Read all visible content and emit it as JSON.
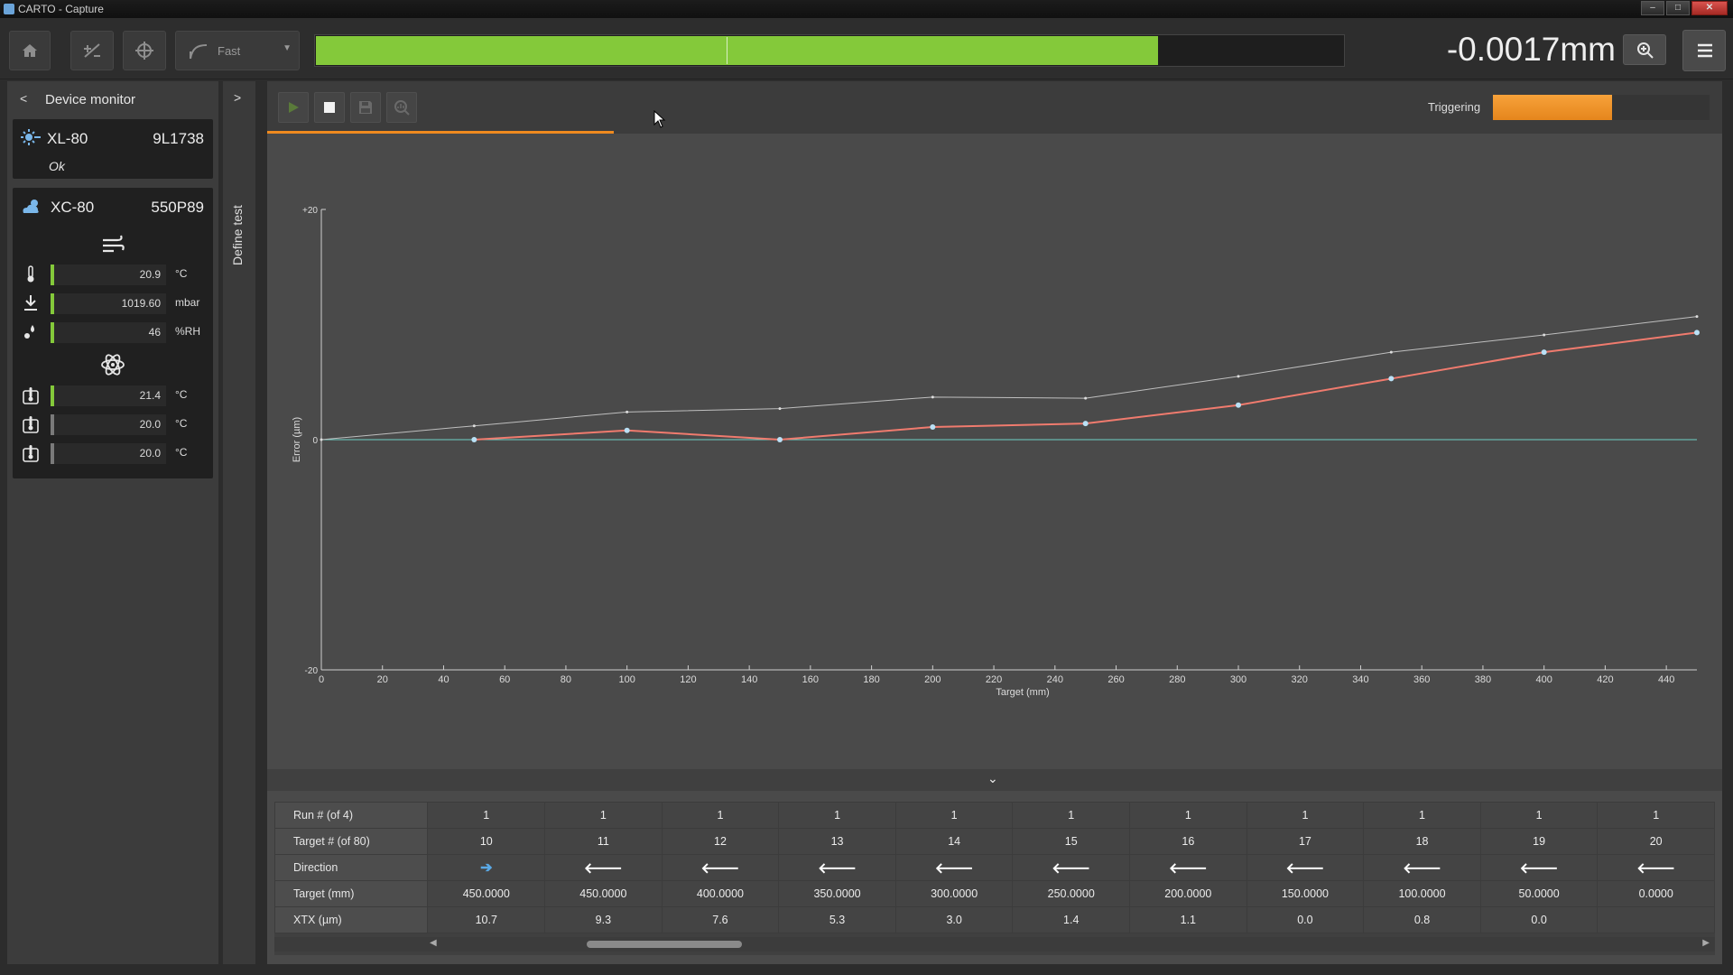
{
  "window": {
    "title": "CARTO - Capture",
    "controls": [
      "–",
      "□",
      "✕"
    ]
  },
  "toolbar": {
    "speed_label": "Fast",
    "progress_fraction": 0.818,
    "readout": "-0.0017mm"
  },
  "device_monitor": {
    "title": "Device monitor",
    "devices": [
      {
        "name": "XL-80",
        "serial": "9L1738",
        "status": "Ok"
      },
      {
        "name": "XC-80",
        "serial": "550P89"
      }
    ],
    "air_sensors": [
      {
        "icon": "thermometer-icon",
        "value": "20.9",
        "unit": "°C",
        "level_color": "#84c93a"
      },
      {
        "icon": "pressure-icon",
        "value": "1019.60",
        "unit": "mbar",
        "level_color": "#84c93a"
      },
      {
        "icon": "humidity-icon",
        "value": "46",
        "unit": "%RH",
        "level_color": "#84c93a"
      }
    ],
    "material_sensors": [
      {
        "icon": "material-temp-icon",
        "value": "21.4",
        "unit": "°C",
        "level_color": "#84c93a"
      },
      {
        "icon": "material-temp-icon",
        "value": "20.0",
        "unit": "°C",
        "level_color": "#7a7a7a"
      },
      {
        "icon": "material-temp-icon",
        "value": "20.0",
        "unit": "°C",
        "level_color": "#7a7a7a"
      }
    ]
  },
  "define_test_tab": {
    "label": "Define test"
  },
  "capture": {
    "triggering_label": "Triggering",
    "triggering_fraction": 0.55
  },
  "chart_data": {
    "type": "line",
    "xlabel": "Target (mm)",
    "ylabel": "Error (µm)",
    "xlim": [
      0,
      450
    ],
    "ylim": [
      -20,
      20
    ],
    "x_ticks": [
      0,
      20,
      40,
      60,
      80,
      100,
      120,
      140,
      160,
      180,
      200,
      220,
      240,
      260,
      280,
      300,
      320,
      340,
      360,
      380,
      400,
      420,
      440
    ],
    "y_tick_labels": [
      "+20",
      "0",
      "-20"
    ],
    "y_ticks": [
      20,
      0,
      -20
    ],
    "series": [
      {
        "color": "#f07b6e",
        "points": [
          [
            50,
            0.0
          ],
          [
            100,
            0.8
          ],
          [
            150,
            0.0
          ],
          [
            200,
            1.1
          ],
          [
            250,
            1.4
          ],
          [
            300,
            3.0
          ],
          [
            350,
            5.3
          ],
          [
            400,
            7.6
          ],
          [
            450,
            9.3
          ]
        ]
      },
      {
        "color": "#bfbfbf",
        "points": [
          [
            0,
            0.0
          ],
          [
            50,
            1.2
          ],
          [
            100,
            2.4
          ],
          [
            150,
            2.7
          ],
          [
            200,
            3.7
          ],
          [
            250,
            3.6
          ],
          [
            300,
            5.5
          ],
          [
            350,
            7.6
          ],
          [
            400,
            9.1
          ],
          [
            450,
            10.7
          ]
        ]
      },
      {
        "color": "#6fd0c6",
        "points": [
          [
            0,
            0
          ],
          [
            450,
            0
          ]
        ]
      }
    ]
  },
  "table": {
    "row_headers": [
      "Run # (of 4)",
      "Target # (of 80)",
      "Direction",
      "Target (mm)",
      "XTX (µm)"
    ],
    "columns": [
      {
        "run": "1",
        "target_num": "10",
        "direction": "right",
        "target_mm": "450.0000",
        "xtx": "10.7"
      },
      {
        "run": "1",
        "target_num": "11",
        "direction": "left",
        "target_mm": "450.0000",
        "xtx": "9.3"
      },
      {
        "run": "1",
        "target_num": "12",
        "direction": "left",
        "target_mm": "400.0000",
        "xtx": "7.6"
      },
      {
        "run": "1",
        "target_num": "13",
        "direction": "left",
        "target_mm": "350.0000",
        "xtx": "5.3"
      },
      {
        "run": "1",
        "target_num": "14",
        "direction": "left",
        "target_mm": "300.0000",
        "xtx": "3.0"
      },
      {
        "run": "1",
        "target_num": "15",
        "direction": "left",
        "target_mm": "250.0000",
        "xtx": "1.4"
      },
      {
        "run": "1",
        "target_num": "16",
        "direction": "left",
        "target_mm": "200.0000",
        "xtx": "1.1"
      },
      {
        "run": "1",
        "target_num": "17",
        "direction": "left",
        "target_mm": "150.0000",
        "xtx": "0.0"
      },
      {
        "run": "1",
        "target_num": "18",
        "direction": "left",
        "target_mm": "100.0000",
        "xtx": "0.8"
      },
      {
        "run": "1",
        "target_num": "19",
        "direction": "left",
        "target_mm": "50.0000",
        "xtx": "0.0"
      },
      {
        "run": "1",
        "target_num": "20",
        "direction": "left",
        "target_mm": "0.0000",
        "xtx": ""
      }
    ],
    "direction_glyphs": {
      "right": "➔",
      "left": "🡐"
    }
  }
}
